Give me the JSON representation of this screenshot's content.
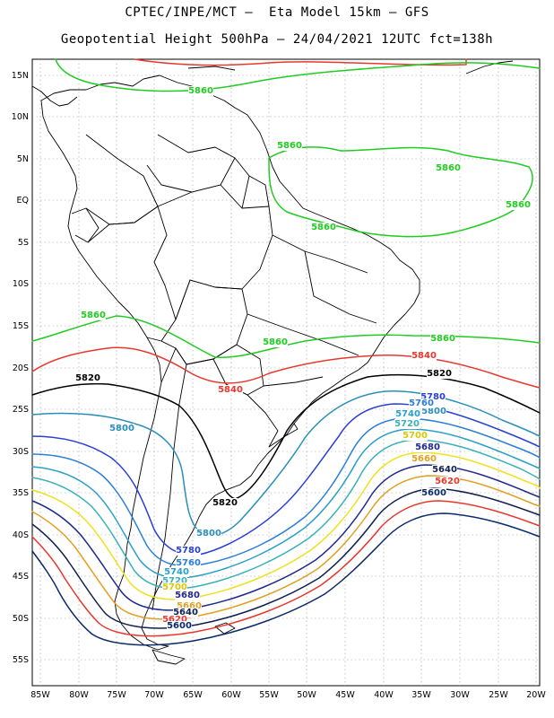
{
  "header": {
    "line1": "CPTEC/INPE/MCT –  Eta Model 15km – GFS",
    "line2": "Geopotential Height 500hPa – 24/04/2021 12UTC fct=138h"
  },
  "axes": {
    "lat_labels": [
      "15N",
      "10N",
      "5N",
      "EQ",
      "5S",
      "10S",
      "15S",
      "20S",
      "25S",
      "30S",
      "35S",
      "40S",
      "45S",
      "50S",
      "55S"
    ],
    "lon_labels": [
      "85W",
      "80W",
      "75W",
      "70W",
      "65W",
      "60W",
      "55W",
      "50W",
      "45W",
      "40W",
      "35W",
      "30W",
      "25W",
      "20W"
    ]
  },
  "contours": [
    {
      "value": "5880",
      "color": "#e8382e"
    },
    {
      "value": "5860",
      "color": "#1fcc1f"
    },
    {
      "value": "5840",
      "color": "#e8382e"
    },
    {
      "value": "5820",
      "color": "#000000"
    },
    {
      "value": "5800",
      "color": "#2a8fb8"
    },
    {
      "value": "5780",
      "color": "#2a3fd6"
    },
    {
      "value": "5760",
      "color": "#2a7fd6"
    },
    {
      "value": "5740",
      "color": "#2aa0c8"
    },
    {
      "value": "5720",
      "color": "#3ab0b8"
    },
    {
      "value": "5700",
      "color": "#f0e020"
    },
    {
      "value": "5680",
      "color": "#202a8c"
    },
    {
      "value": "5660",
      "color": "#e0a020"
    },
    {
      "value": "5640",
      "color": "#102050"
    },
    {
      "value": "5620",
      "color": "#e8382e"
    },
    {
      "value": "5600",
      "color": "#0a2a6a"
    }
  ],
  "contour_labels": [
    {
      "text": "5860",
      "color": "#1fcc1f"
    },
    {
      "text": "5860",
      "color": "#1fcc1f"
    },
    {
      "text": "5860",
      "color": "#1fcc1f"
    },
    {
      "text": "5860",
      "color": "#1fcc1f"
    },
    {
      "text": "5860",
      "color": "#1fcc1f"
    },
    {
      "text": "5860",
      "color": "#1fcc1f"
    },
    {
      "text": "5860",
      "color": "#1fcc1f"
    },
    {
      "text": "5860",
      "color": "#1fcc1f"
    },
    {
      "text": "5840",
      "color": "#e8382e"
    },
    {
      "text": "5840",
      "color": "#e8382e"
    },
    {
      "text": "5820",
      "color": "#000000"
    },
    {
      "text": "5820",
      "color": "#000000"
    },
    {
      "text": "5820",
      "color": "#000000"
    },
    {
      "text": "5800",
      "color": "#2a8fb8"
    },
    {
      "text": "5800",
      "color": "#2a8fb8"
    },
    {
      "text": "5800",
      "color": "#2a8fb8"
    },
    {
      "text": "5780",
      "color": "#2a3fd6"
    },
    {
      "text": "5780",
      "color": "#2a3fd6"
    },
    {
      "text": "5760",
      "color": "#2a7fd6"
    },
    {
      "text": "5760",
      "color": "#2a7fd6"
    },
    {
      "text": "5740",
      "color": "#2aa0c8"
    },
    {
      "text": "5740",
      "color": "#2aa0c8"
    },
    {
      "text": "5720",
      "color": "#3ab0b8"
    },
    {
      "text": "5720",
      "color": "#3ab0b8"
    },
    {
      "text": "5700",
      "color": "#d8c800"
    },
    {
      "text": "5700",
      "color": "#d8c800"
    },
    {
      "text": "5680",
      "color": "#202a8c"
    },
    {
      "text": "5680",
      "color": "#202a8c"
    },
    {
      "text": "5660",
      "color": "#e0a020"
    },
    {
      "text": "5660",
      "color": "#e0a020"
    },
    {
      "text": "5640",
      "color": "#102050"
    },
    {
      "text": "5640",
      "color": "#102050"
    },
    {
      "text": "5620",
      "color": "#e8382e"
    },
    {
      "text": "5620",
      "color": "#e8382e"
    },
    {
      "text": "5600",
      "color": "#0a2a6a"
    },
    {
      "text": "5600",
      "color": "#0a2a6a"
    }
  ]
}
